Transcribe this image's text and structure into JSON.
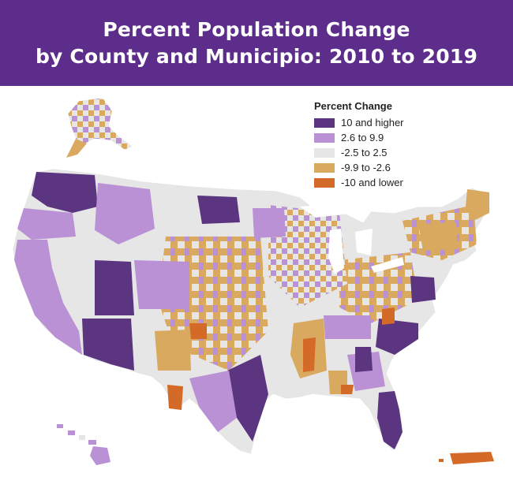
{
  "header": {
    "title_line1": "Percent Population Change",
    "title_line2": "by County and Municipio: 2010 to 2019",
    "background": "#5c2d8a"
  },
  "legend": {
    "title": "Percent Change",
    "items": [
      {
        "label": "10 and higher",
        "color": "#5b3580"
      },
      {
        "label": "2.6 to 9.9",
        "color": "#b991d4"
      },
      {
        "label": "-2.5 to 2.5",
        "color": "#e6e6e6"
      },
      {
        "label": "-9.9 to -2.6",
        "color": "#d8a95e"
      },
      {
        "label": "-10 and lower",
        "color": "#d46a28"
      }
    ]
  }
}
